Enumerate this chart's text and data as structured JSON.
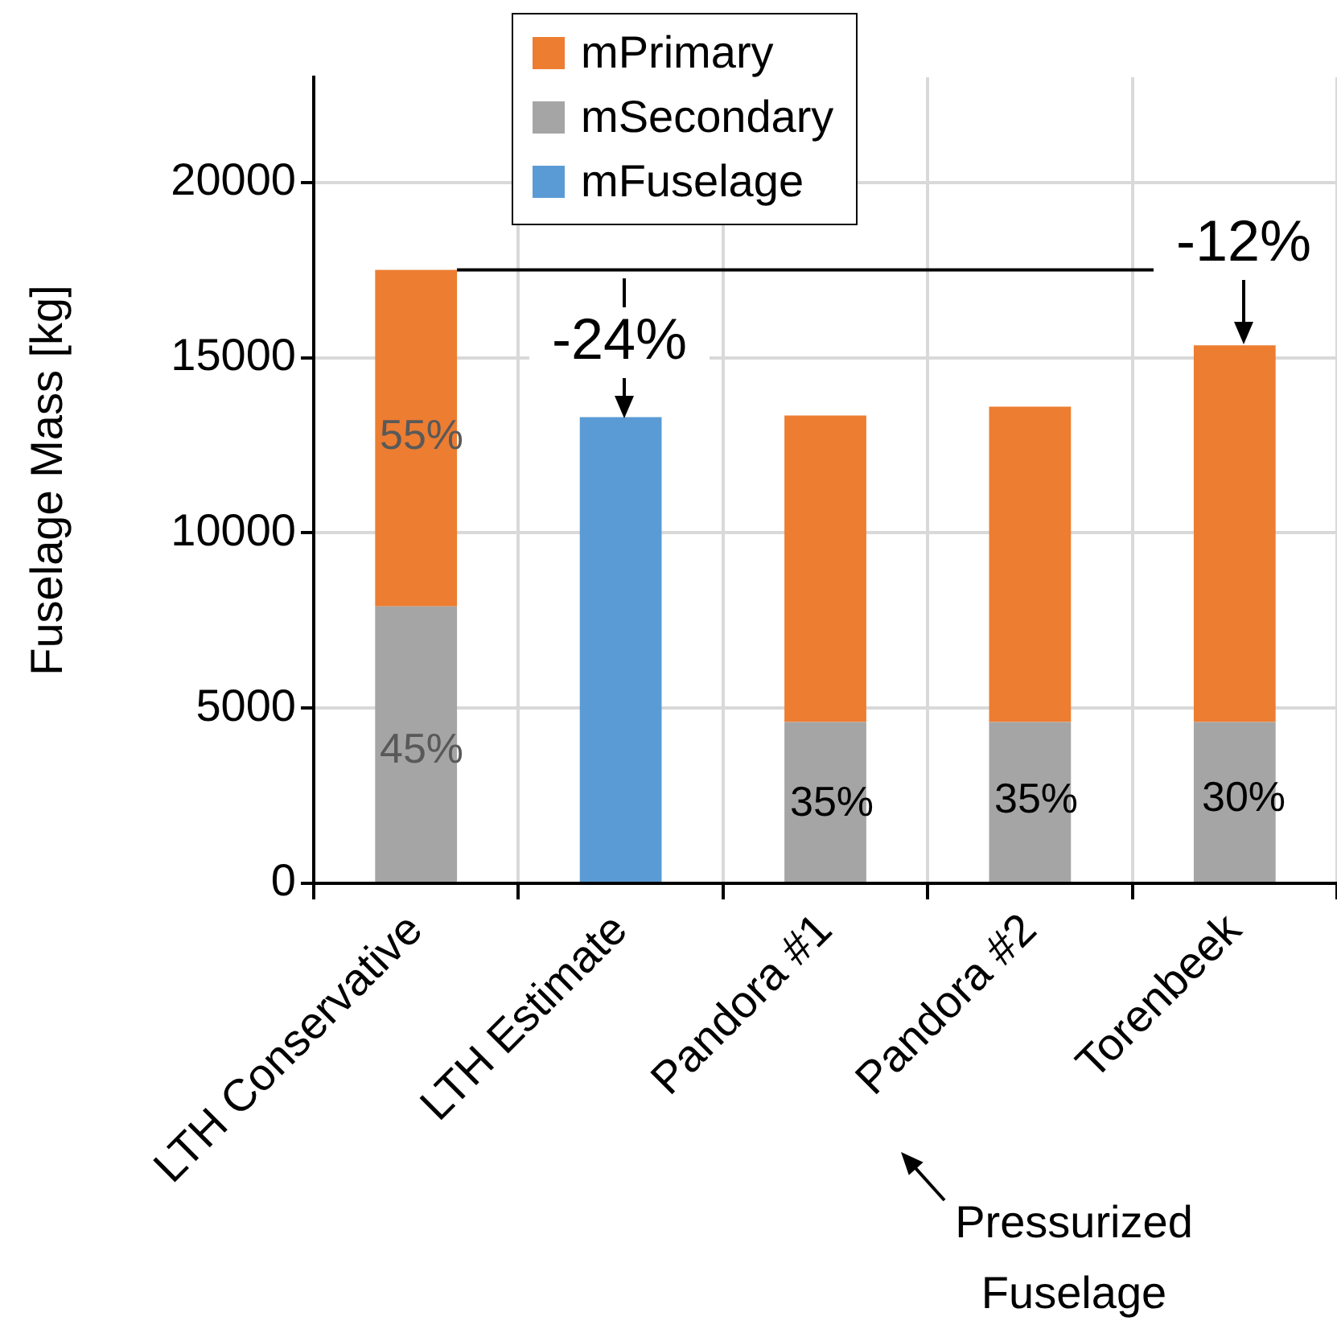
{
  "chart_data": {
    "type": "bar",
    "stacked": true,
    "ylabel": "Fuselage Mass [kg]",
    "categories": [
      "LTH Conservative",
      "LTH Estimate",
      "Pandora #1",
      "Pandora #2",
      "Torenbeek"
    ],
    "series": [
      {
        "name": "mSecondary",
        "color": "#a5a5a5",
        "values": [
          7900,
          null,
          4600,
          4600,
          4600
        ]
      },
      {
        "name": "mPrimary",
        "color": "#ed7d31",
        "values": [
          9600,
          null,
          8750,
          9000,
          10750
        ]
      },
      {
        "name": "mFuselage",
        "color": "#5b9bd5",
        "values": [
          null,
          13300,
          null,
          null,
          null
        ]
      }
    ],
    "ylim": [
      0,
      23000
    ],
    "yticks": [
      0,
      5000,
      10000,
      15000,
      20000
    ],
    "grid": true,
    "legend": "top",
    "ref_lines": [
      {
        "axis": "y",
        "value": 17500,
        "label": null
      }
    ],
    "annotations": [
      "55%",
      "45%",
      "35%",
      "35%",
      "30%",
      "-24%",
      "-12%",
      "Pressurized Fuselage"
    ]
  }
}
